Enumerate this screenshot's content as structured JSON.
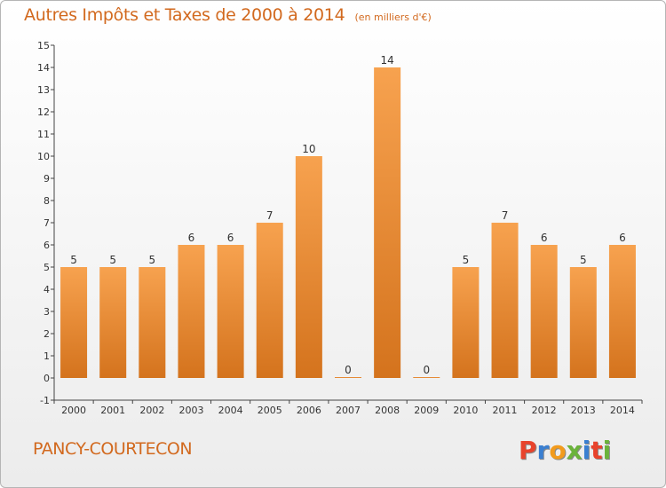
{
  "header": {
    "title": "Autres Impôts et Taxes de 2000 à 2014",
    "subtitle": "(en milliers d'€)"
  },
  "footer": {
    "location": "PANCY-COURTECON",
    "logo_text": "Proxiti"
  },
  "colors": {
    "accent": "#d2691e",
    "bar_top": "#f7a24f",
    "bar_bottom": "#d4731d",
    "logo_letters": [
      "#e8432c",
      "#3a7fd1",
      "#f29b1d",
      "#6bb33b",
      "#3a7fd1",
      "#e8432c",
      "#6bb33b"
    ]
  },
  "chart_data": {
    "type": "bar",
    "categories": [
      "2000",
      "2001",
      "2002",
      "2003",
      "2004",
      "2005",
      "2006",
      "2007",
      "2008",
      "2009",
      "2010",
      "2011",
      "2012",
      "2013",
      "2014"
    ],
    "values": [
      5,
      5,
      5,
      6,
      6,
      7,
      10,
      0,
      14,
      0,
      5,
      7,
      6,
      5,
      6
    ],
    "data_labels": [
      "5",
      "5",
      "5",
      "6",
      "6",
      "7",
      "10",
      "0",
      "14",
      "0",
      "5",
      "7",
      "6",
      "5",
      "6"
    ],
    "yticks": [
      "-1",
      "0",
      "1",
      "2",
      "3",
      "4",
      "5",
      "6",
      "7",
      "8",
      "9",
      "10",
      "11",
      "12",
      "13",
      "14",
      "15"
    ],
    "ylim": [
      -1,
      15
    ],
    "grid": false
  }
}
